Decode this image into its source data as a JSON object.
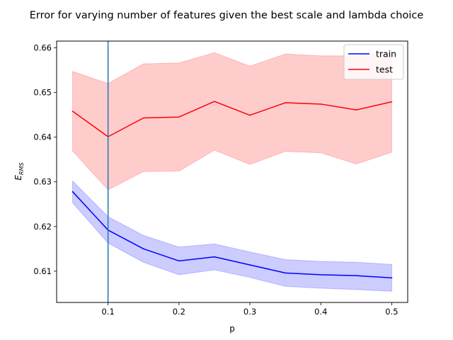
{
  "chart_data": {
    "type": "line",
    "title": "Error for varying number of features given the best scale and lambda choice",
    "xlabel": "p",
    "ylabel_main": "E",
    "ylabel_sub": "RMS",
    "xlim": [
      0.0275,
      0.5225
    ],
    "ylim": [
      0.603,
      0.6615
    ],
    "xticks": [
      0.1,
      0.2,
      0.3,
      0.4,
      0.5
    ],
    "xtick_labels": [
      "0.1",
      "0.2",
      "0.3",
      "0.4",
      "0.5"
    ],
    "yticks": [
      0.61,
      0.62,
      0.63,
      0.64,
      0.65,
      0.66
    ],
    "ytick_labels": [
      "0.61",
      "0.62",
      "0.63",
      "0.64",
      "0.65",
      "0.66"
    ],
    "x": [
      0.05,
      0.1,
      0.15,
      0.2,
      0.25,
      0.3,
      0.35,
      0.4,
      0.45,
      0.5
    ],
    "vline": {
      "x": 0.1,
      "color": "#1f77b4"
    },
    "grid": false,
    "legend_position": "top-right",
    "series": [
      {
        "name": "train",
        "color": "#0000ff",
        "band_color": "#0000ff",
        "values": [
          0.6278,
          0.6192,
          0.615,
          0.6123,
          0.6132,
          0.6114,
          0.6096,
          0.6092,
          0.609,
          0.6085
        ],
        "lower": [
          0.6253,
          0.6163,
          0.612,
          0.6092,
          0.6103,
          0.6086,
          0.6066,
          0.6062,
          0.6059,
          0.6055
        ],
        "upper": [
          0.6302,
          0.6222,
          0.618,
          0.6154,
          0.6161,
          0.6143,
          0.6126,
          0.6122,
          0.612,
          0.6115
        ]
      },
      {
        "name": "test",
        "color": "#ff0000",
        "band_color": "#ff0000",
        "values": [
          0.6458,
          0.6401,
          0.6443,
          0.6445,
          0.648,
          0.6449,
          0.6477,
          0.6474,
          0.6461,
          0.6479
        ],
        "lower": [
          0.6369,
          0.6282,
          0.6323,
          0.6324,
          0.6371,
          0.6339,
          0.6368,
          0.6365,
          0.634,
          0.6366
        ],
        "upper": [
          0.6547,
          0.652,
          0.6564,
          0.6566,
          0.6589,
          0.6559,
          0.6586,
          0.6582,
          0.6582,
          0.6592
        ]
      }
    ]
  }
}
